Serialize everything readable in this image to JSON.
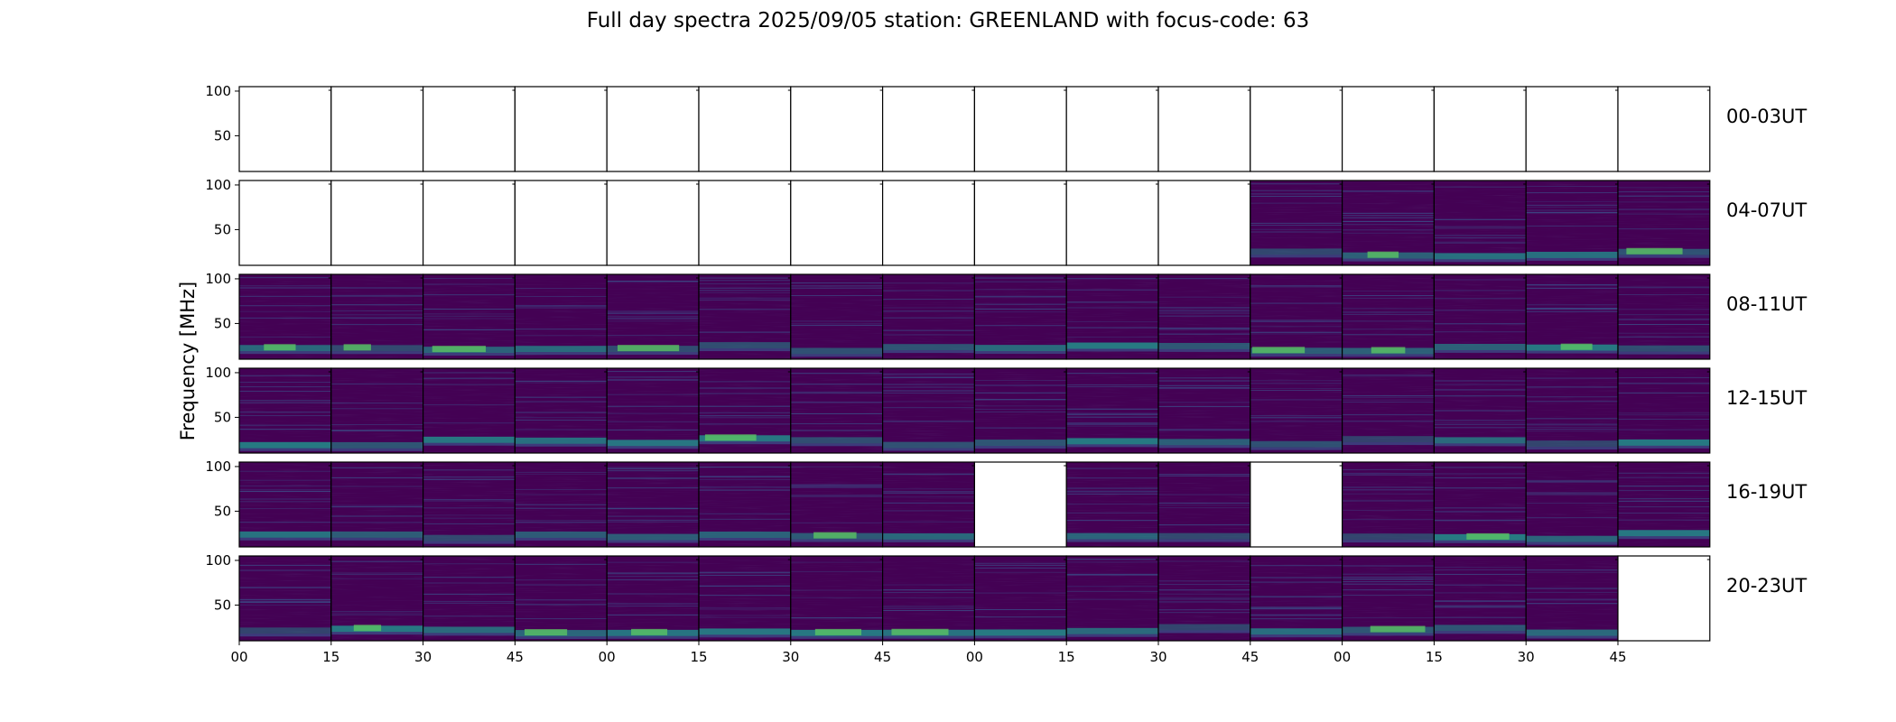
{
  "title": "Full day spectra 2025/09/05 station: GREENLAND with focus-code: 63",
  "chart_data": {
    "type": "heatmap",
    "title": "Full day spectra 2025/09/05 station: GREENLAND with focus-code: 63",
    "ylabel": "Frequency [MHz]",
    "xlabel": "",
    "yticks": [
      100,
      50
    ],
    "ylim": [
      10,
      105
    ],
    "xticks": [
      "00",
      "15",
      "30",
      "45",
      "00",
      "15",
      "30",
      "45",
      "00",
      "15",
      "30",
      "45",
      "00",
      "15",
      "30",
      "45"
    ],
    "minutes_per_panel": 15,
    "panels_per_row": 16,
    "colormap": [
      "#440154",
      "#3b528b",
      "#21918c",
      "#5ec962",
      "#fde725"
    ],
    "empty_color": "#ffffff",
    "rows": [
      {
        "label": "00-03UT",
        "has_data": [
          false,
          false,
          false,
          false,
          false,
          false,
          false,
          false,
          false,
          false,
          false,
          false,
          false,
          false,
          false,
          false
        ]
      },
      {
        "label": "04-07UT",
        "has_data": [
          false,
          false,
          false,
          false,
          false,
          false,
          false,
          false,
          false,
          false,
          false,
          true,
          true,
          true,
          true,
          true
        ]
      },
      {
        "label": "08-11UT",
        "has_data": [
          true,
          true,
          true,
          true,
          true,
          true,
          true,
          true,
          true,
          true,
          true,
          true,
          true,
          true,
          true,
          true
        ]
      },
      {
        "label": "12-15UT",
        "has_data": [
          true,
          true,
          true,
          true,
          true,
          true,
          true,
          true,
          true,
          true,
          true,
          true,
          true,
          true,
          true,
          true
        ]
      },
      {
        "label": "16-19UT",
        "has_data": [
          true,
          true,
          true,
          true,
          true,
          true,
          true,
          true,
          false,
          true,
          true,
          false,
          true,
          true,
          true,
          true
        ]
      },
      {
        "label": "20-23UT",
        "has_data": [
          true,
          true,
          true,
          true,
          true,
          true,
          true,
          true,
          true,
          true,
          true,
          true,
          true,
          true,
          true,
          false
        ]
      }
    ]
  }
}
